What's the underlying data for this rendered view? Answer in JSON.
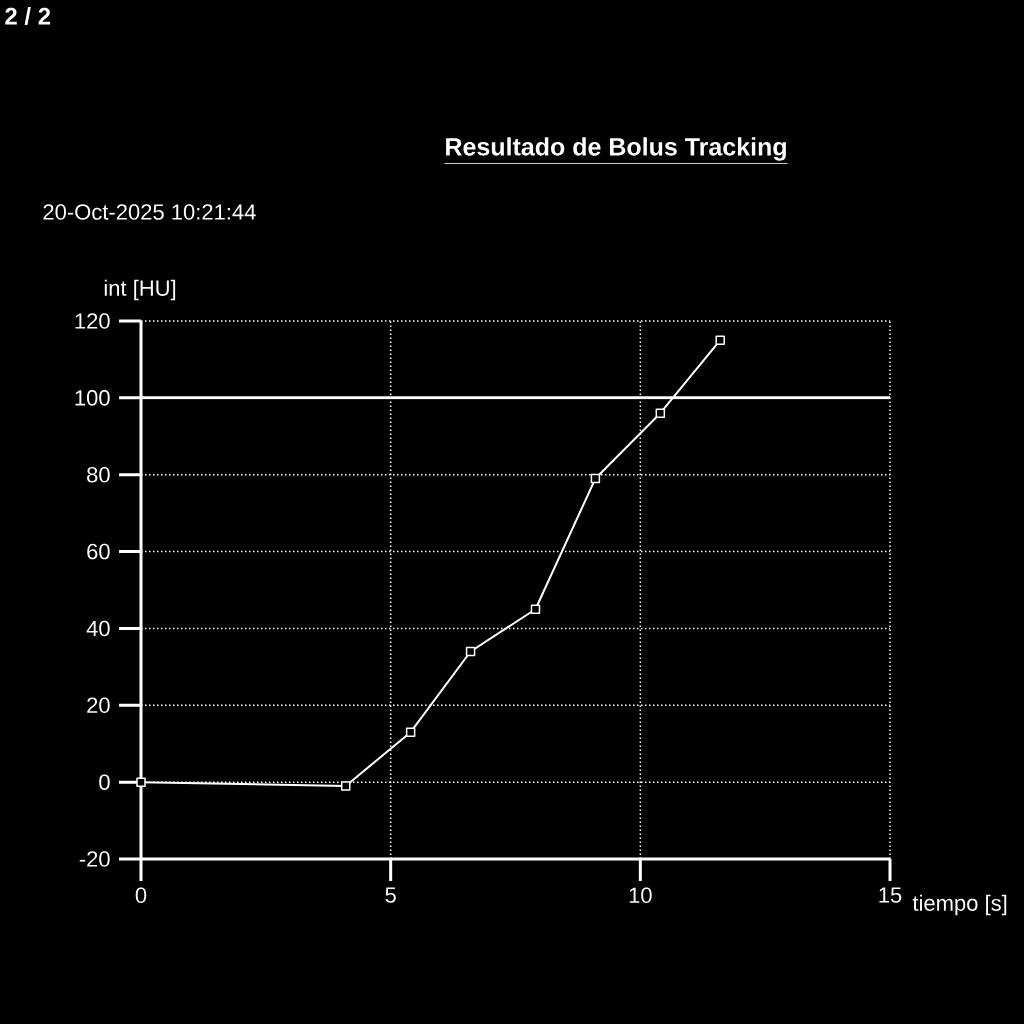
{
  "chart_data": {
    "type": "line",
    "title": "Resultado de Bolus Tracking",
    "xlabel": "tiempo [s]",
    "ylabel": "int [HU]",
    "annotations": [
      "2 / 2",
      "20-Oct-2025 10:21:44"
    ],
    "x": [
      0,
      4.1,
      5.4,
      6.6,
      7.9,
      9.1,
      10.4,
      11.6
    ],
    "series": [
      {
        "color": "#ffffff",
        "values": [
          0,
          -1,
          13,
          34,
          45,
          79,
          96,
          115
        ]
      }
    ],
    "xlim": [
      0,
      15
    ],
    "ylim": [
      -20,
      120
    ],
    "xticks": [
      0,
      5,
      10,
      15
    ],
    "yticks": [
      -20,
      0,
      20,
      40,
      60,
      80,
      100,
      120
    ],
    "ref_lines": [
      {
        "axis": "y",
        "value": 100,
        "color": "#ffffff",
        "line_style": "solid"
      }
    ],
    "grid": true,
    "marker": "square",
    "line_style": "solid"
  }
}
